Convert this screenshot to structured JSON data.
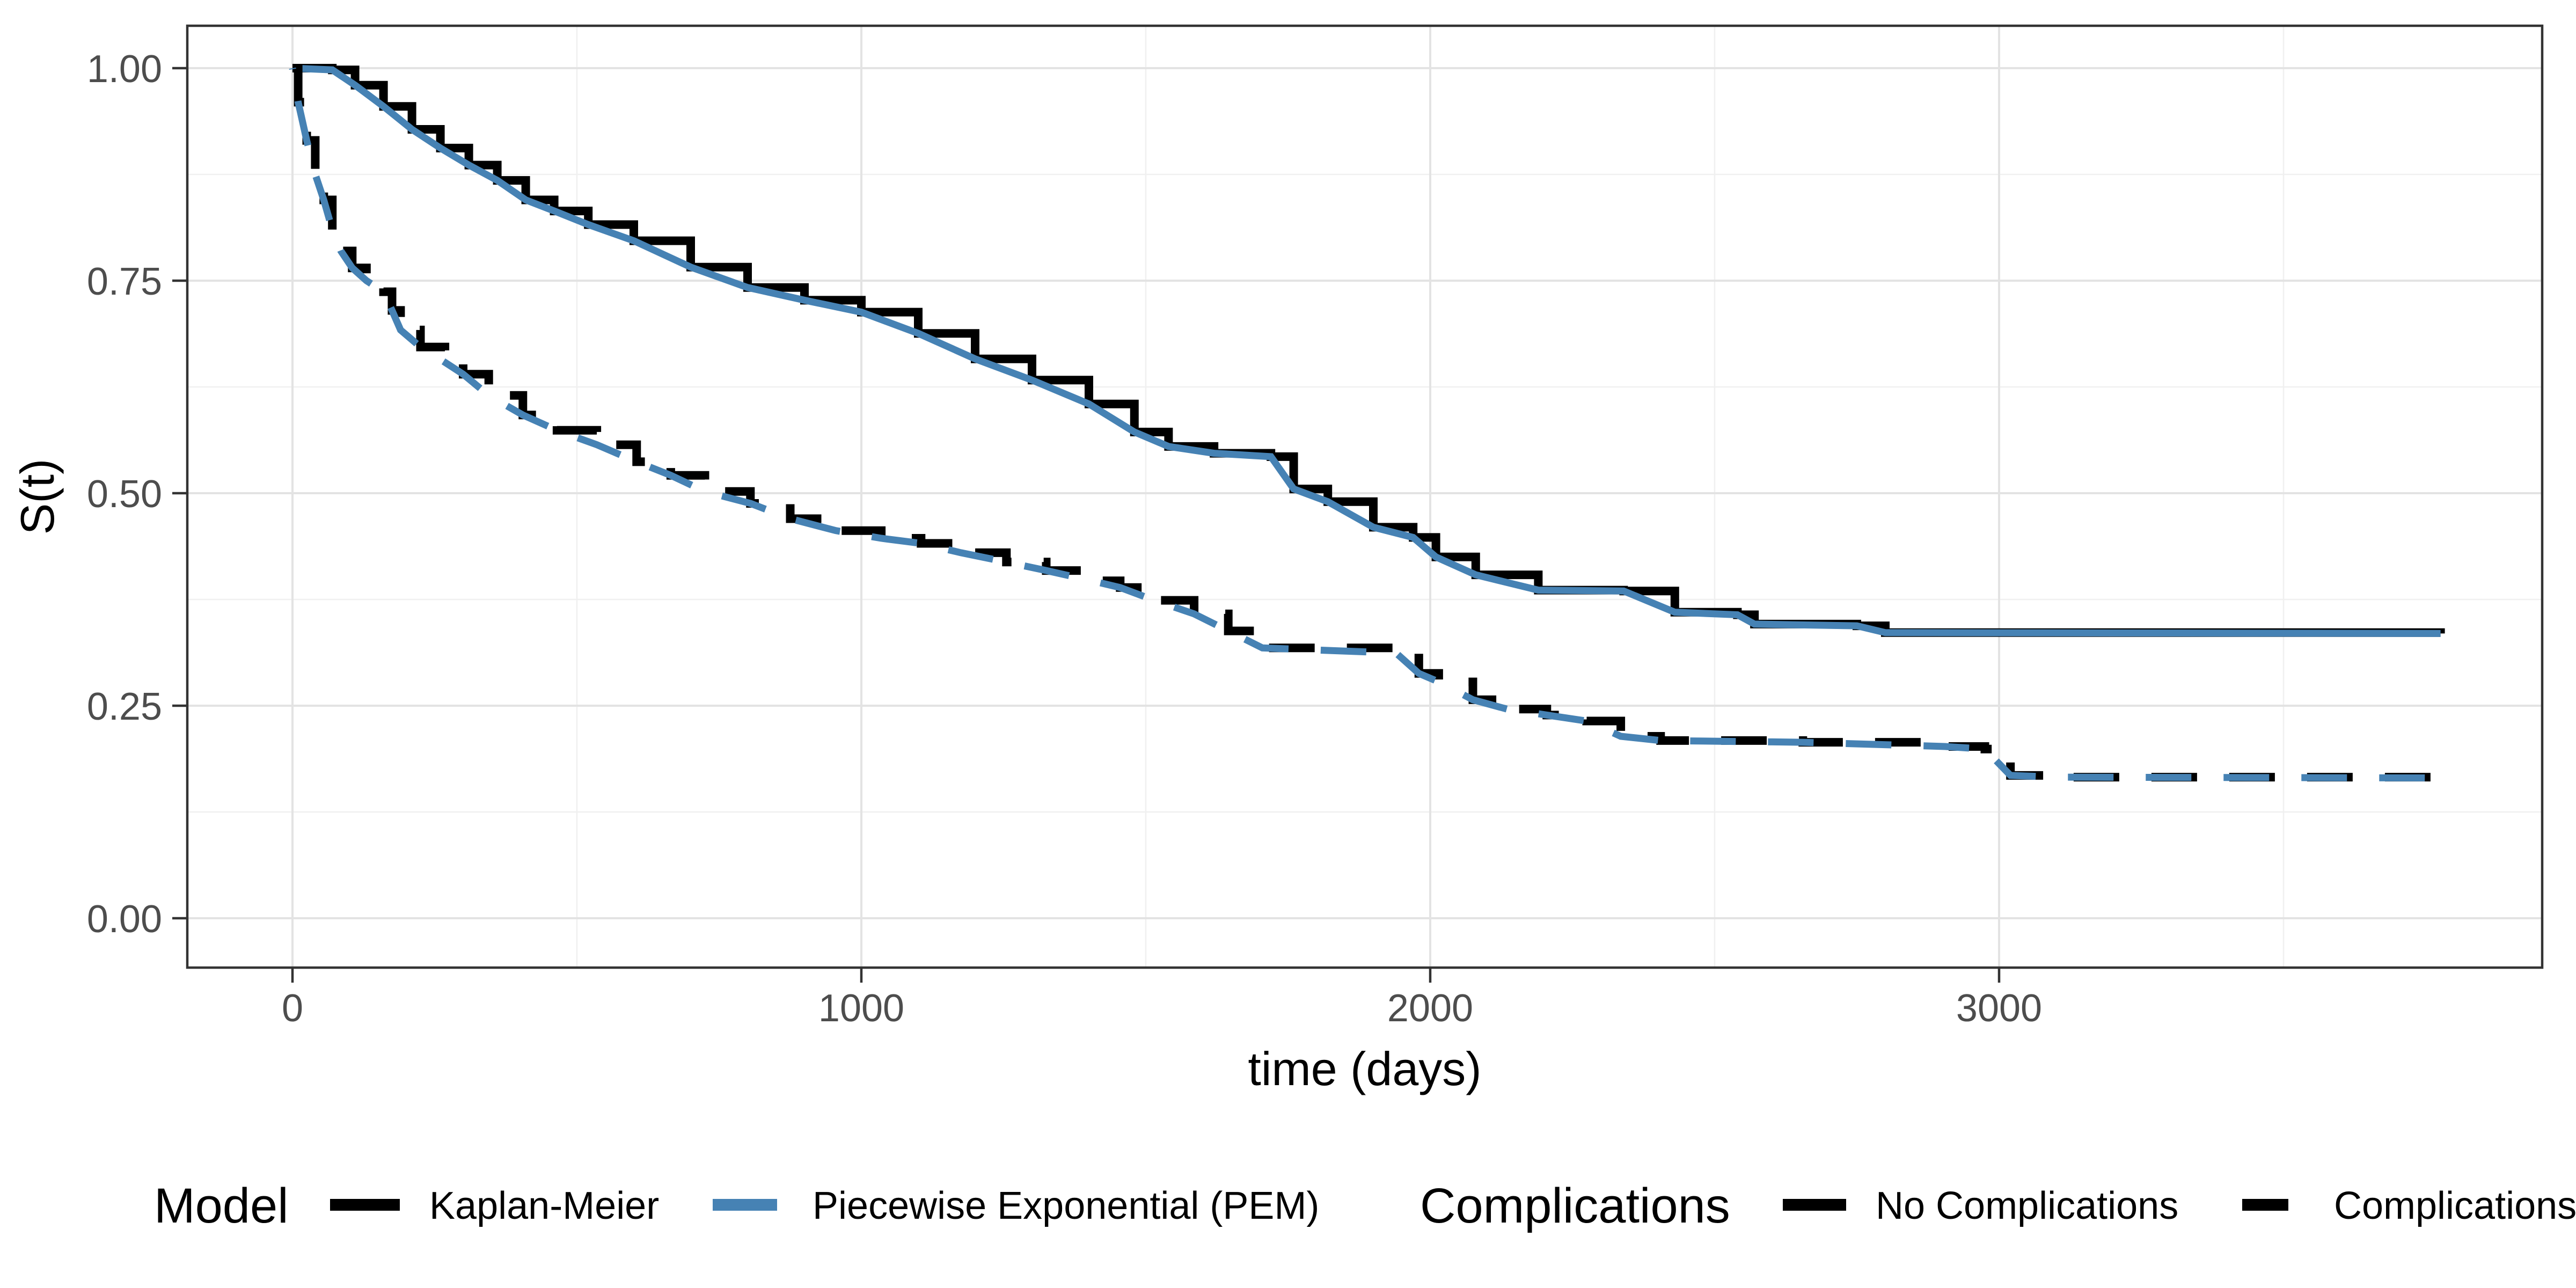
{
  "chart_data": {
    "type": "line",
    "title": "",
    "xlabel": "time (days)",
    "ylabel": "S(t)",
    "x_ticks": [
      0,
      1000,
      2000,
      3000
    ],
    "x_tick_labels": [
      "0",
      "1000",
      "2000",
      "3000"
    ],
    "y_ticks": [
      0.0,
      0.25,
      0.5,
      0.75,
      1.0
    ],
    "y_tick_labels": [
      "0.00",
      "0.25",
      "0.50",
      "0.75",
      "1.00"
    ],
    "x_minor_ticks": [
      500,
      1500,
      2500,
      3500
    ],
    "y_minor_ticks": [
      0.125,
      0.375,
      0.625,
      0.875
    ],
    "xlim": [
      -185,
      3955
    ],
    "ylim": [
      -0.058,
      1.05
    ],
    "grid": "major+minor",
    "legend_position": "bottom",
    "colors": {
      "kaplan_meier": "#000000",
      "pem": "#4682B4",
      "grid_major": "#e3e3e3",
      "grid_minor": "#f0f0f0",
      "panel_border": "#333333",
      "tick": "#333333",
      "tick_label": "#4d4d4d",
      "axis_title": "#000000"
    },
    "curves": {
      "no_complications": [
        [
          0,
          1.0
        ],
        [
          70,
          0.998
        ],
        [
          110,
          0.98
        ],
        [
          160,
          0.955
        ],
        [
          210,
          0.928
        ],
        [
          260,
          0.906
        ],
        [
          310,
          0.886
        ],
        [
          360,
          0.868
        ],
        [
          410,
          0.845
        ],
        [
          460,
          0.832
        ],
        [
          520,
          0.816
        ],
        [
          600,
          0.797
        ],
        [
          700,
          0.766
        ],
        [
          800,
          0.742
        ],
        [
          900,
          0.727
        ],
        [
          1000,
          0.713
        ],
        [
          1100,
          0.688
        ],
        [
          1200,
          0.658
        ],
        [
          1300,
          0.633
        ],
        [
          1400,
          0.605
        ],
        [
          1480,
          0.572
        ],
        [
          1540,
          0.555
        ],
        [
          1620,
          0.547
        ],
        [
          1720,
          0.543
        ],
        [
          1760,
          0.505
        ],
        [
          1820,
          0.49
        ],
        [
          1900,
          0.46
        ],
        [
          1970,
          0.448
        ],
        [
          2010,
          0.425
        ],
        [
          2080,
          0.404
        ],
        [
          2190,
          0.386
        ],
        [
          2340,
          0.385
        ],
        [
          2430,
          0.36
        ],
        [
          2540,
          0.357
        ],
        [
          2570,
          0.346
        ],
        [
          2750,
          0.344
        ],
        [
          2800,
          0.336
        ],
        [
          3776,
          0.335
        ]
      ],
      "complications": [
        [
          0,
          1.0
        ],
        [
          10,
          0.96
        ],
        [
          25,
          0.915
        ],
        [
          40,
          0.875
        ],
        [
          55,
          0.845
        ],
        [
          70,
          0.81
        ],
        [
          85,
          0.785
        ],
        [
          105,
          0.765
        ],
        [
          130,
          0.75
        ],
        [
          160,
          0.737
        ],
        [
          175,
          0.715
        ],
        [
          190,
          0.692
        ],
        [
          225,
          0.672
        ],
        [
          268,
          0.654
        ],
        [
          300,
          0.64
        ],
        [
          345,
          0.615
        ],
        [
          405,
          0.592
        ],
        [
          465,
          0.574
        ],
        [
          535,
          0.557
        ],
        [
          605,
          0.537
        ],
        [
          665,
          0.521
        ],
        [
          725,
          0.502
        ],
        [
          805,
          0.488
        ],
        [
          875,
          0.47
        ],
        [
          955,
          0.456
        ],
        [
          1035,
          0.447
        ],
        [
          1105,
          0.441
        ],
        [
          1175,
          0.43
        ],
        [
          1255,
          0.419
        ],
        [
          1325,
          0.409
        ],
        [
          1405,
          0.397
        ],
        [
          1455,
          0.389
        ],
        [
          1515,
          0.374
        ],
        [
          1585,
          0.358
        ],
        [
          1645,
          0.338
        ],
        [
          1705,
          0.318
        ],
        [
          1940,
          0.312
        ],
        [
          1980,
          0.288
        ],
        [
          2015,
          0.278
        ],
        [
          2075,
          0.257
        ],
        [
          2135,
          0.246
        ],
        [
          2205,
          0.239
        ],
        [
          2275,
          0.232
        ],
        [
          2335,
          0.214
        ],
        [
          2405,
          0.209
        ],
        [
          2655,
          0.207
        ],
        [
          2905,
          0.202
        ],
        [
          2975,
          0.199
        ],
        [
          3020,
          0.168
        ],
        [
          3100,
          0.166
        ],
        [
          3776,
          0.165
        ]
      ]
    },
    "series": [
      {
        "name": "Kaplan-Meier / No Complications",
        "model": "Kaplan-Meier",
        "group": "No Complications",
        "curve": "no_complications",
        "render": "step",
        "color": "#000000",
        "dash": "solid",
        "width": 16
      },
      {
        "name": "PEM / No Complications",
        "model": "Piecewise Exponential (PEM)",
        "group": "No Complications",
        "curve": "no_complications",
        "render": "line",
        "color": "#4682B4",
        "dash": "solid",
        "width": 13
      },
      {
        "name": "Kaplan-Meier / Complications",
        "model": "Kaplan-Meier",
        "group": "Complications",
        "curve": "complications",
        "render": "step",
        "color": "#000000",
        "dash": "dashed",
        "width": 16
      },
      {
        "name": "PEM / Complications",
        "model": "Piecewise Exponential (PEM)",
        "group": "Complications",
        "curve": "complications",
        "render": "line",
        "color": "#4682B4",
        "dash": "dashed",
        "width": 13
      }
    ]
  },
  "legend": {
    "groups": [
      {
        "title": "Model",
        "items": [
          {
            "label": "Kaplan-Meier",
            "color": "#000000",
            "dash": "solid"
          },
          {
            "label": "Piecewise Exponential (PEM)",
            "color": "#4682B4",
            "dash": "solid"
          }
        ]
      },
      {
        "title": "Complications",
        "items": [
          {
            "label": "No Complications",
            "color": "#000000",
            "dash": "solid"
          },
          {
            "label": "Complications",
            "color": "#000000",
            "dash": "dashed"
          }
        ]
      }
    ]
  }
}
